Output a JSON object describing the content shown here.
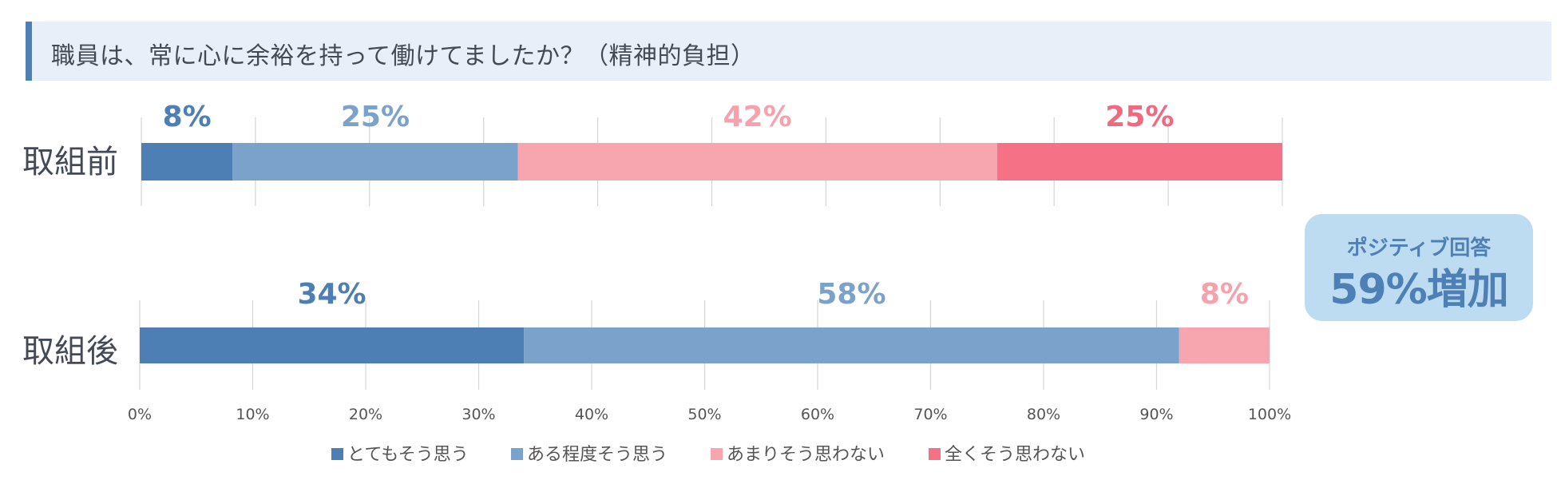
{
  "header": {
    "title": "職員は、常に心に余裕を持って働けてましたか？（精神的負担）"
  },
  "callout": {
    "sub": "ポジティブ回答",
    "main": "59%増加"
  },
  "colors": {
    "とてもそう思う": "#4d7fb4",
    "ある程度そう思う": "#7ba2cb",
    "あまりそう思わない": "#f7a5ae",
    "全くそう思わない": "#f57185",
    "label_dark_blue": "#4d7fb4",
    "label_light_blue": "#7ba2cb",
    "label_pink": "#f5a2ad",
    "label_red": "#f0697f",
    "grid": "#d4d4d4",
    "text": "#444a55"
  },
  "chart_data": {
    "type": "bar",
    "orientation": "horizontal",
    "stacked": true,
    "percent": true,
    "categories": [
      "取組前",
      "取組後"
    ],
    "series": [
      {
        "name": "とてもそう思う",
        "values": [
          8,
          34
        ]
      },
      {
        "name": "ある程度そう思う",
        "values": [
          25,
          58
        ]
      },
      {
        "name": "あまりそう思わない",
        "values": [
          42,
          8
        ]
      },
      {
        "name": "全くそう思わない",
        "values": [
          25,
          0
        ]
      }
    ],
    "data_labels": [
      [
        "8%",
        "25%",
        "42%",
        "25%"
      ],
      [
        "34%",
        "58%",
        "8%",
        ""
      ]
    ],
    "xlim": [
      0,
      100
    ],
    "x_ticks": [
      "0%",
      "10%",
      "20%",
      "30%",
      "40%",
      "50%",
      "60%",
      "70%",
      "80%",
      "90%",
      "100%"
    ],
    "grid": true,
    "legend_position": "bottom"
  }
}
